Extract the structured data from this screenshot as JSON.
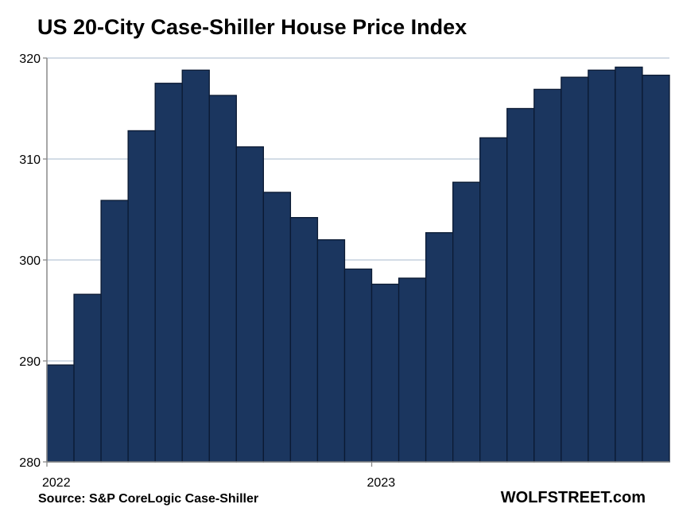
{
  "chart_data": {
    "type": "bar",
    "title": "US 20-City Case-Shiller House Price Index",
    "xlabel": "",
    "ylabel": "",
    "x_tick_labels": [
      {
        "label": "2022",
        "category_index": 0
      },
      {
        "label": "2023",
        "category_index": 12
      }
    ],
    "ylim": [
      280,
      320
    ],
    "yticks": [
      280,
      290,
      300,
      310,
      320
    ],
    "grid": true,
    "categories": [
      "2022-01",
      "2022-02",
      "2022-03",
      "2022-04",
      "2022-05",
      "2022-06",
      "2022-07",
      "2022-08",
      "2022-09",
      "2022-10",
      "2022-11",
      "2022-12",
      "2023-01",
      "2023-02",
      "2023-03",
      "2023-04",
      "2023-05",
      "2023-06",
      "2023-07",
      "2023-08",
      "2023-09",
      "2023-10",
      "2023-11"
    ],
    "values": [
      289.6,
      296.6,
      305.9,
      312.8,
      317.5,
      318.8,
      316.3,
      311.2,
      306.7,
      304.2,
      302.0,
      299.1,
      297.6,
      298.2,
      302.7,
      307.7,
      312.1,
      315.0,
      316.9,
      318.1,
      318.8,
      319.1,
      318.3
    ],
    "bar_color": "#1b365f",
    "bar_edge_color": "#0b1a33",
    "grid_color": "#b9c6d6",
    "axis_color": "#8a8a8a"
  },
  "footer": {
    "source": "Source: S&P CoreLogic Case-Shiller",
    "brand": "WOLFSTREET.com"
  }
}
